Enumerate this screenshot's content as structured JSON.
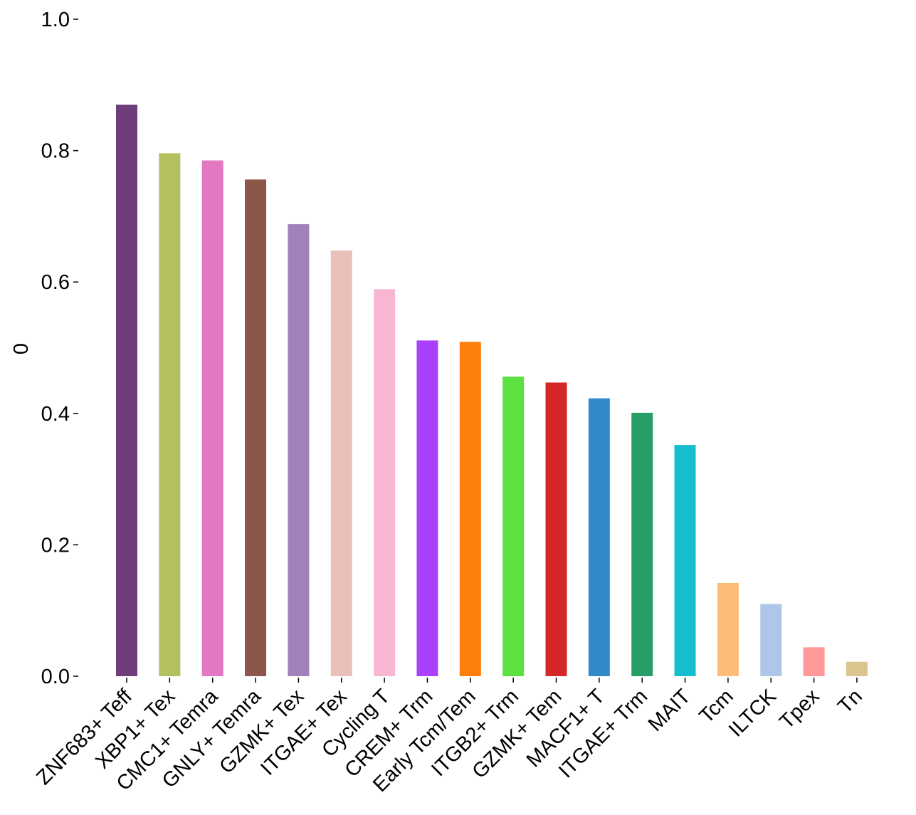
{
  "chart_data": {
    "type": "bar",
    "title": "",
    "xlabel": "",
    "ylabel": "0",
    "ylim": [
      0,
      1.0
    ],
    "yticks": [
      "0.0",
      "0.2",
      "0.4",
      "0.6",
      "0.8",
      "1.0"
    ],
    "grid": false,
    "categories": [
      "ZNF683+ Teff",
      "XBP1+ Tex",
      "CMC1+ Temra",
      "GNLY+ Temra",
      "GZMK+ Tex",
      "ITGAE+ Tex",
      "Cycling T",
      "CREM+ Trm",
      "Early Tcm/Tem",
      "ITGB2+ Trm",
      "GZMK+ Tem",
      "MACF1+ T",
      "ITGAE+ Trm",
      "MAIT",
      "Tcm",
      "ILTCK",
      "Tpex",
      "Tn"
    ],
    "values": [
      0.87,
      0.796,
      0.785,
      0.756,
      0.688,
      0.648,
      0.589,
      0.511,
      0.509,
      0.456,
      0.447,
      0.423,
      0.401,
      0.352,
      0.142,
      0.11,
      0.044,
      0.022
    ],
    "colors": [
      "#6f3d7c",
      "#b4bf5e",
      "#e377c2",
      "#8c564b",
      "#a081b9",
      "#e8bfb9",
      "#f7b6d2",
      "#aa40fc",
      "#ff7f0e",
      "#5ce140",
      "#d62728",
      "#3389c9",
      "#279e68",
      "#17becf",
      "#ffbb78",
      "#aec7e8",
      "#ff9896",
      "#dbc58f"
    ]
  }
}
